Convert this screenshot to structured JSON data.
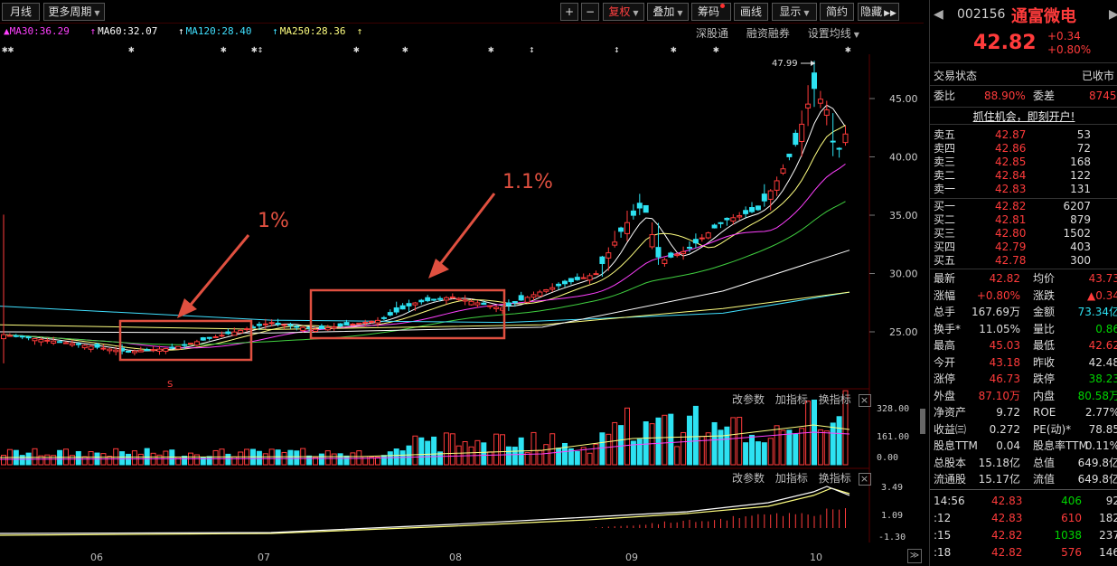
{
  "toolbar": {
    "period": "月线",
    "more_period": "更多周期",
    "plus": "+",
    "minus": "−",
    "adjust": "复权",
    "overlay": "叠加",
    "chips": "筹码",
    "draw": "画线",
    "display": "显示",
    "summary": "简约",
    "hide": "隐藏",
    "fast_fwd": "▶▶"
  },
  "ma_legend": [
    {
      "label": "MA30:36.29",
      "color": "#ff40ff"
    },
    {
      "label": "MA60:32.07",
      "color": "#ffffff"
    },
    {
      "label": "MA120:28.40",
      "color": "#40e0ff"
    },
    {
      "label": "MA250:28.36",
      "color": "#ffff80"
    }
  ],
  "chart_links": {
    "connect": "深股通",
    "margin": "融资融券",
    "settings": "设置均线"
  },
  "price_axis": [
    "45.00",
    "40.00",
    "35.00",
    "30.00",
    "25.00"
  ],
  "high_marker": "47.99",
  "annotations": {
    "left_pct": "1%",
    "right_pct": "1.1%",
    "s_marker": "S"
  },
  "volume_panel": {
    "links": [
      "改参数",
      "加指标",
      "换指标"
    ],
    "axis": [
      "328.00",
      "161.00",
      "0.00"
    ]
  },
  "macd_panel": {
    "links": [
      "改参数",
      "加指标",
      "换指标"
    ],
    "axis": [
      "3.49",
      "1.09",
      "-1.30"
    ]
  },
  "months": [
    "06",
    "07",
    "08",
    "09",
    "10"
  ],
  "quote": {
    "code": "002156",
    "name": "通富微电",
    "price": "42.82",
    "change": "+0.34",
    "change_pct": "+0.80%",
    "status_label": "交易状态",
    "status_value": "已收市",
    "ratio_label": "委比",
    "ratio_value": "88.90%",
    "diff_label": "委差",
    "diff_value": "8745",
    "promo": "抓住机会，即刻开户!",
    "asks": [
      {
        "label": "卖五",
        "price": "42.87",
        "vol": "53"
      },
      {
        "label": "卖四",
        "price": "42.86",
        "vol": "72"
      },
      {
        "label": "卖三",
        "price": "42.85",
        "vol": "168"
      },
      {
        "label": "卖二",
        "price": "42.84",
        "vol": "122"
      },
      {
        "label": "卖一",
        "price": "42.83",
        "vol": "131"
      }
    ],
    "bids": [
      {
        "label": "买一",
        "price": "42.82",
        "vol": "6207"
      },
      {
        "label": "买二",
        "price": "42.81",
        "vol": "879"
      },
      {
        "label": "买三",
        "price": "42.80",
        "vol": "1502"
      },
      {
        "label": "买四",
        "price": "42.79",
        "vol": "403"
      },
      {
        "label": "买五",
        "price": "42.78",
        "vol": "300"
      }
    ],
    "stats": [
      {
        "l1": "最新",
        "v1": "42.82",
        "c1": "red",
        "l2": "均价",
        "v2": "43.73",
        "c2": "red"
      },
      {
        "l1": "涨幅",
        "v1": "+0.80%",
        "c1": "red",
        "l2": "涨跌",
        "v2": "▲0.34",
        "c2": "red"
      },
      {
        "l1": "总手",
        "v1": "167.69万",
        "c1": "white",
        "l2": "金额",
        "v2": "73.34亿",
        "c2": "cyan"
      },
      {
        "l1": "换手*",
        "v1": "11.05%",
        "c1": "white",
        "l2": "量比",
        "v2": "0.86",
        "c2": "green"
      },
      {
        "l1": "最高",
        "v1": "45.03",
        "c1": "red",
        "l2": "最低",
        "v2": "42.62",
        "c2": "red"
      },
      {
        "l1": "今开",
        "v1": "43.18",
        "c1": "red",
        "l2": "昨收",
        "v2": "42.48",
        "c2": "white"
      },
      {
        "l1": "涨停",
        "v1": "46.73",
        "c1": "red",
        "l2": "跌停",
        "v2": "38.23",
        "c2": "green"
      },
      {
        "l1": "外盘",
        "v1": "87.10万",
        "c1": "red",
        "l2": "内盘",
        "v2": "80.58万",
        "c2": "green"
      },
      {
        "l1": "净资产",
        "v1": "9.72",
        "c1": "white",
        "l2": "ROE",
        "v2": "2.77%",
        "c2": "white"
      },
      {
        "l1": "收益㈢",
        "v1": "0.272",
        "c1": "white",
        "l2": "PE(动)*",
        "v2": "78.85",
        "c2": "white"
      },
      {
        "l1": "股息TTM",
        "v1": "0.04",
        "c1": "white",
        "l2": "股息率TTM",
        "v2": "0.11%",
        "c2": "white"
      },
      {
        "l1": "总股本",
        "v1": "15.18亿",
        "c1": "white",
        "l2": "总值",
        "v2": "649.8亿",
        "c2": "white"
      },
      {
        "l1": "流通股",
        "v1": "15.17亿",
        "c1": "white",
        "l2": "流值",
        "v2": "649.8亿",
        "c2": "white"
      }
    ],
    "ticks": [
      {
        "time": "14:56",
        "price": "42.83",
        "vol": "406",
        "num": "92"
      },
      {
        "time": ":12",
        "price": "42.83",
        "vol": "610",
        "num": "182"
      },
      {
        "time": ":15",
        "price": "42.82",
        "vol": "1038",
        "num": "237"
      },
      {
        "time": ":18",
        "price": "42.82",
        "vol": "576",
        "num": "146"
      }
    ]
  },
  "colors": {
    "up": "#ff3b3b",
    "down": "#2de2f2",
    "highlight_box": "#e05040"
  }
}
